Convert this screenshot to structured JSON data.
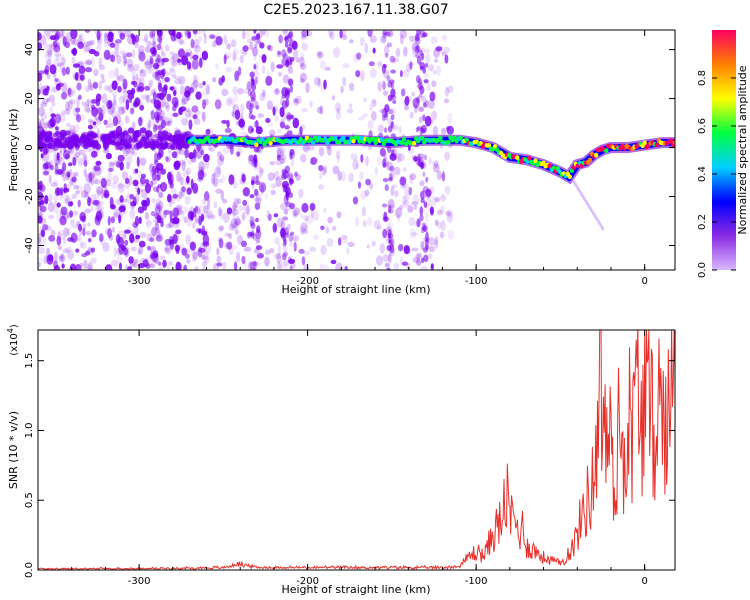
{
  "title": "C2E5.2023.167.11.38.G07",
  "chart_data": [
    {
      "type": "heatmap",
      "xlabel": "Height of straight line (km)",
      "ylabel": "Frequency (Hz)",
      "xlim": [
        -360,
        18
      ],
      "ylim": [
        -50,
        48
      ],
      "xticks": [
        -300,
        -200,
        -100,
        0
      ],
      "xtick_labels": [
        "-300",
        "-200",
        "-100",
        "0"
      ],
      "yticks": [
        -40,
        -20,
        0,
        20,
        40
      ],
      "ytick_labels": [
        "-40",
        "-20",
        "0",
        "20",
        "40"
      ],
      "grid": false,
      "ridge": {
        "x": [
          -270,
          -250,
          -230,
          -210,
          -190,
          -170,
          -150,
          -130,
          -110,
          -100,
          -90,
          -80,
          -70,
          -60,
          -50,
          -45,
          -40,
          -35,
          -30,
          -25,
          -20,
          -10,
          0,
          10,
          18
        ],
        "y": [
          3,
          3,
          2,
          3,
          3,
          3,
          2,
          3,
          3,
          2,
          0,
          -4,
          -5,
          -7,
          -10,
          -12,
          -7,
          -6,
          -3,
          -1,
          0,
          0,
          1,
          2,
          2
        ]
      },
      "colorbar": {
        "label": "Normalized spectral amplitude",
        "range": [
          0,
          1
        ],
        "ticks": [
          0.0,
          0.2,
          0.4,
          0.6,
          0.8
        ],
        "tick_labels": [
          "0.0",
          "0.2",
          "0.4",
          "0.6",
          "0.8"
        ],
        "colors": [
          "#d9b8ff",
          "#8a2be2",
          "#0000ff",
          "#00d0ff",
          "#00ff40",
          "#ffff00",
          "#ff8000",
          "#ff0060"
        ]
      },
      "noise_color": "#7a00f0"
    },
    {
      "type": "line",
      "xlabel": "Height of straight line (km)",
      "ylabel": "SNR (10 * v/v)",
      "scale_label": "(x10",
      "scale_exp": "4",
      "scale_close": ")",
      "xlim": [
        -360,
        18
      ],
      "ylim": [
        0,
        1.72
      ],
      "xticks": [
        -300,
        -200,
        -100,
        0
      ],
      "xtick_labels": [
        "-300",
        "-200",
        "-100",
        "0"
      ],
      "yticks": [
        0.0,
        0.5,
        1.0,
        1.5
      ],
      "ytick_labels": [
        "0.0",
        "0.5",
        "1.0",
        "1.5"
      ],
      "color": "#e8302a",
      "x": [
        -360,
        -300,
        -250,
        -240,
        -230,
        -200,
        -150,
        -120,
        -110,
        -105,
        -100,
        -95,
        -90,
        -85,
        -82,
        -80,
        -78,
        -75,
        -72,
        -70,
        -65,
        -60,
        -55,
        -50,
        -45,
        -42,
        -40,
        -37,
        -35,
        -32,
        -30,
        -28,
        -27,
        -26,
        -25,
        -23,
        -20,
        -18,
        -15,
        -12,
        -10,
        -7,
        -5,
        -2,
        0,
        3,
        5,
        8,
        10,
        13,
        15,
        18
      ],
      "y": [
        0.01,
        0.01,
        0.02,
        0.05,
        0.02,
        0.02,
        0.02,
        0.02,
        0.03,
        0.1,
        0.15,
        0.12,
        0.3,
        0.4,
        0.62,
        0.4,
        0.45,
        0.3,
        0.35,
        0.2,
        0.15,
        0.1,
        0.08,
        0.05,
        0.15,
        0.2,
        0.3,
        0.45,
        0.55,
        0.6,
        0.8,
        1.2,
        1.7,
        1.55,
        1.3,
        1.1,
        1.0,
        0.6,
        1.2,
        0.9,
        1.3,
        1.1,
        1.5,
        1.25,
        1.4,
        1.3,
        1.1,
        1.45,
        1.2,
        1.35,
        1.25,
        1.6
      ]
    }
  ]
}
